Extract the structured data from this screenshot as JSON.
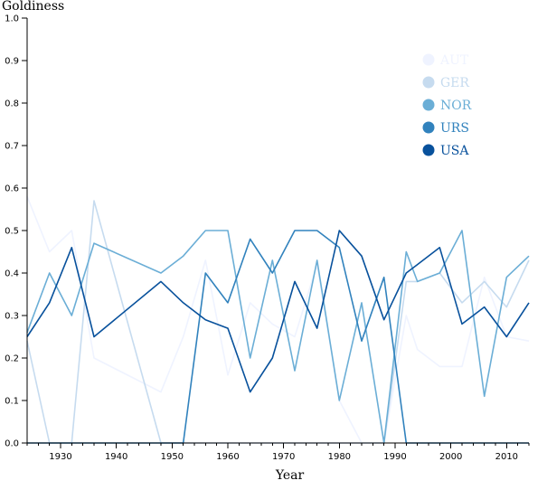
{
  "chart_data": {
    "type": "line",
    "title": "",
    "xlabel": "Year",
    "ylabel": "Goldiness",
    "xlim": [
      1924,
      2014
    ],
    "ylim": [
      0,
      1
    ],
    "x_ticks": [
      "1930",
      "1940",
      "1950",
      "1960",
      "1970",
      "1980",
      "1990",
      "2000",
      "2010"
    ],
    "y_ticks": [
      "0.0",
      "0.1",
      "0.2",
      "0.3",
      "0.4",
      "0.5",
      "0.6",
      "0.7",
      "0.8",
      "0.9",
      "1.0"
    ],
    "legend_position": "top-right",
    "grid": false,
    "series": [
      {
        "name": "AUT",
        "color": "#eff3ff",
        "points": [
          [
            1924,
            0.58
          ],
          [
            1928,
            0.45
          ],
          [
            1932,
            0.5
          ],
          [
            1936,
            0.2
          ],
          [
            1948,
            0.12
          ],
          [
            1952,
            0.25
          ],
          [
            1956,
            0.43
          ],
          [
            1960,
            0.16
          ],
          [
            1964,
            0.33
          ],
          [
            1968,
            0.28
          ],
          [
            1972,
            0.25
          ],
          [
            1976,
            0.42
          ],
          [
            1980,
            0.1
          ],
          [
            1984,
            0.0
          ],
          [
            1988,
            0.0
          ],
          [
            1992,
            0.3
          ],
          [
            1994,
            0.22
          ],
          [
            1998,
            0.18
          ],
          [
            2002,
            0.18
          ],
          [
            2006,
            0.39
          ],
          [
            2010,
            0.25
          ],
          [
            2014,
            0.24
          ]
        ]
      },
      {
        "name": "GER",
        "color": "#c6dbef",
        "points": [
          [
            1924,
            0.24
          ],
          [
            1928,
            0.0
          ],
          [
            1932,
            0.0
          ],
          [
            1936,
            0.57
          ],
          [
            1948,
            0.0
          ],
          [
            1952,
            0.0
          ],
          [
            1956,
            0.0
          ],
          [
            1960,
            0.0
          ],
          [
            1964,
            0.0
          ],
          [
            1968,
            0.0
          ],
          [
            1972,
            0.0
          ],
          [
            1976,
            0.0
          ],
          [
            1980,
            0.0
          ],
          [
            1984,
            0.0
          ],
          [
            1988,
            0.0
          ],
          [
            1992,
            0.38
          ],
          [
            1994,
            0.38
          ],
          [
            1998,
            0.4
          ],
          [
            2002,
            0.33
          ],
          [
            2006,
            0.38
          ],
          [
            2010,
            0.32
          ],
          [
            2014,
            0.43
          ]
        ]
      },
      {
        "name": "NOR",
        "color": "#6baed6",
        "points": [
          [
            1924,
            0.26
          ],
          [
            1928,
            0.4
          ],
          [
            1932,
            0.3
          ],
          [
            1936,
            0.47
          ],
          [
            1948,
            0.4
          ],
          [
            1952,
            0.44
          ],
          [
            1956,
            0.5
          ],
          [
            1960,
            0.5
          ],
          [
            1964,
            0.2
          ],
          [
            1968,
            0.43
          ],
          [
            1972,
            0.17
          ],
          [
            1976,
            0.43
          ],
          [
            1980,
            0.1
          ],
          [
            1984,
            0.33
          ],
          [
            1988,
            0.0
          ],
          [
            1992,
            0.45
          ],
          [
            1994,
            0.38
          ],
          [
            1998,
            0.4
          ],
          [
            2002,
            0.5
          ],
          [
            2006,
            0.11
          ],
          [
            2010,
            0.39
          ],
          [
            2014,
            0.44
          ]
        ]
      },
      {
        "name": "URS",
        "color": "#3182bd",
        "points": [
          [
            1924,
            0.0
          ],
          [
            1928,
            0.0
          ],
          [
            1932,
            0.0
          ],
          [
            1936,
            0.0
          ],
          [
            1948,
            0.0
          ],
          [
            1952,
            0.0
          ],
          [
            1956,
            0.4
          ],
          [
            1960,
            0.33
          ],
          [
            1964,
            0.48
          ],
          [
            1968,
            0.4
          ],
          [
            1972,
            0.5
          ],
          [
            1976,
            0.5
          ],
          [
            1980,
            0.46
          ],
          [
            1984,
            0.24
          ],
          [
            1988,
            0.39
          ],
          [
            1992,
            0.0
          ],
          [
            1994,
            0.0
          ],
          [
            1998,
            0.0
          ],
          [
            2002,
            0.0
          ],
          [
            2006,
            0.0
          ],
          [
            2010,
            0.0
          ],
          [
            2014,
            0.0
          ]
        ]
      },
      {
        "name": "USA",
        "color": "#08519c",
        "points": [
          [
            1924,
            0.25
          ],
          [
            1928,
            0.33
          ],
          [
            1932,
            0.46
          ],
          [
            1936,
            0.25
          ],
          [
            1948,
            0.38
          ],
          [
            1952,
            0.33
          ],
          [
            1956,
            0.29
          ],
          [
            1960,
            0.27
          ],
          [
            1964,
            0.12
          ],
          [
            1968,
            0.2
          ],
          [
            1972,
            0.38
          ],
          [
            1976,
            0.27
          ],
          [
            1980,
            0.5
          ],
          [
            1984,
            0.44
          ],
          [
            1988,
            0.29
          ],
          [
            1992,
            0.4
          ],
          [
            1994,
            0.42
          ],
          [
            1998,
            0.46
          ],
          [
            2002,
            0.28
          ],
          [
            2006,
            0.32
          ],
          [
            2010,
            0.25
          ],
          [
            2014,
            0.33
          ]
        ]
      }
    ]
  }
}
